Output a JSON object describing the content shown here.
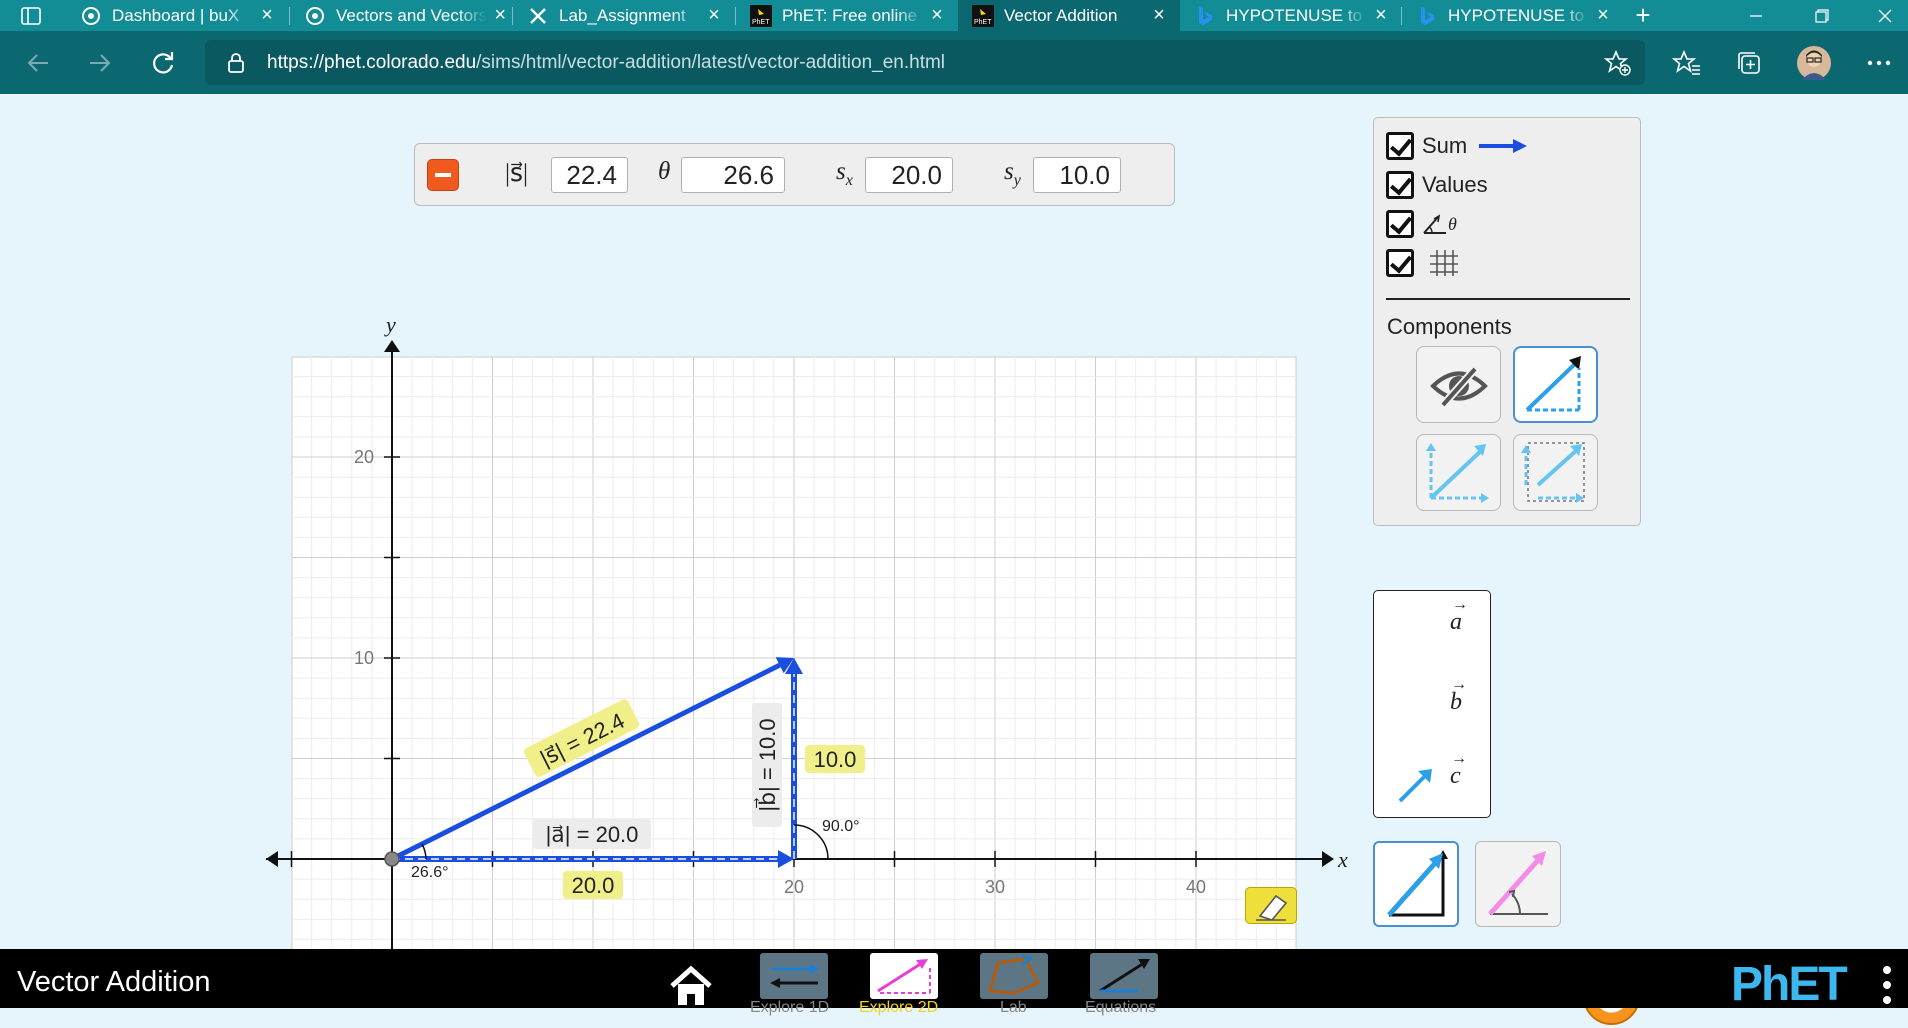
{
  "browser": {
    "tabs": [
      {
        "title": "Dashboard | buX",
        "icon": "bux-icon",
        "active": false
      },
      {
        "title": "Vectors and Vectors",
        "icon": "bux-icon",
        "active": false
      },
      {
        "title": "Lab_Assignment",
        "icon": "x-logo-icon",
        "active": false
      },
      {
        "title": "PhET: Free online",
        "icon": "phet-icon",
        "active": false
      },
      {
        "title": "Vector Addition",
        "icon": "phet-icon",
        "active": true
      },
      {
        "title": "HYPOTENUSE to",
        "icon": "bing-icon",
        "active": false
      },
      {
        "title": "HYPOTENUSE to",
        "icon": "bing-icon",
        "active": false
      }
    ],
    "url_host": "https://phet.colorado.edu",
    "url_path": "/sims/html/vector-addition/latest/vector-addition_en.html",
    "new_tab": "+"
  },
  "sum_panel": {
    "magnitude_label": "|s⃗|",
    "magnitude": "22.4",
    "theta_label": "θ",
    "theta": "26.6",
    "sx_label": "sx",
    "sx": "20.0",
    "sy_label": "sy",
    "sy": "10.0"
  },
  "graph": {
    "x_axis_label": "x",
    "y_axis_label": "y",
    "x_ticks": [
      "20",
      "30",
      "40"
    ],
    "y_ticks": [
      "10",
      "20"
    ],
    "sum_vector_label": "|s⃗| = 22.4",
    "vector_a_label": "|a⃗| = 20.0",
    "vector_b_label": "|b⃗| = 10.0",
    "x_component_value": "20.0",
    "y_component_value": "10.0",
    "angle_at_b": "90.0°",
    "angle_at_origin": "26.6°",
    "colors": {
      "sum": "#1a4ee0",
      "component": "#1a4ee0",
      "grid": "#dddddd",
      "highlight": "#f1ef8a"
    }
  },
  "checkbox_panel": {
    "sum_label": "Sum",
    "values_label": "Values",
    "angle_label": "θ",
    "components_title": "Components"
  },
  "vector_box": {
    "labels": [
      "a",
      "b",
      "c"
    ]
  },
  "navbar": {
    "sim_title": "Vector Addition",
    "screens": [
      "Explore 1D",
      "Explore 2D",
      "Lab",
      "Equations"
    ],
    "active_screen": "Explore 2D",
    "logo": "PhET"
  }
}
